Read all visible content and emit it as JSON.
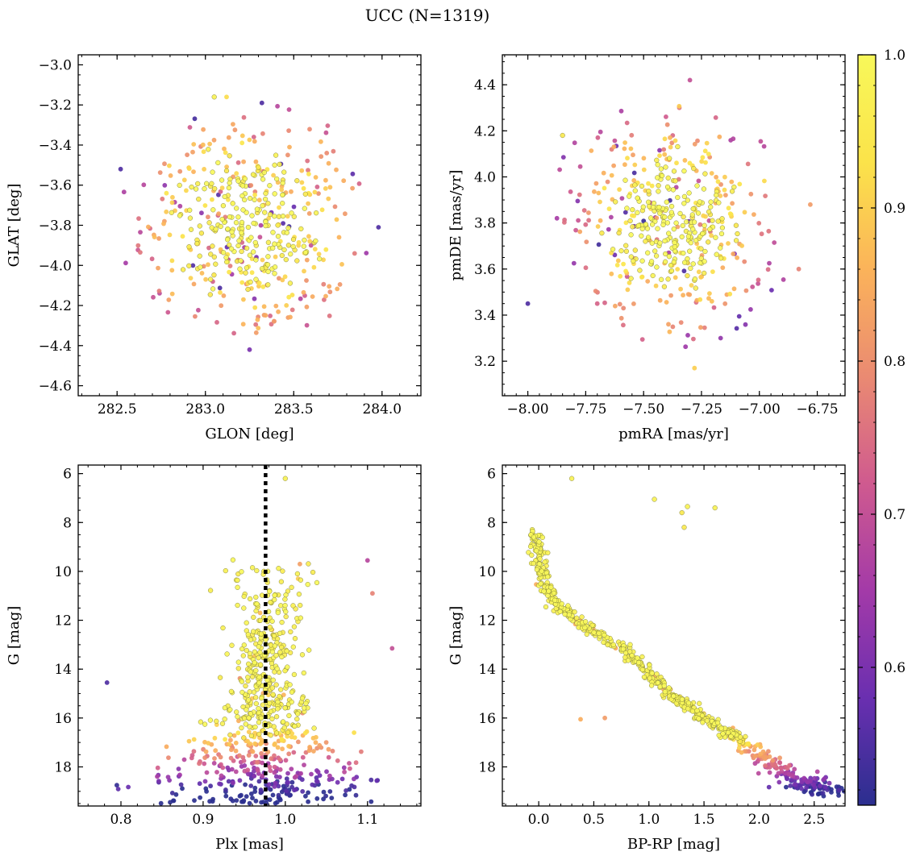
{
  "figure_title": "UCC (N=1319)",
  "colorbar": {
    "min": 0.51,
    "max": 1.0,
    "ticks": [
      0.6,
      0.7,
      0.8,
      0.9,
      1.0
    ],
    "tick_labels": [
      "0.6",
      "0.7",
      "0.8",
      "0.9",
      "1.0"
    ],
    "colormap_stops": [
      "#2b2f8f",
      "#6a2fb0",
      "#a33aa8",
      "#cf5a8f",
      "#ea8a72",
      "#fbb35a",
      "#fbe34a",
      "#f8f85a"
    ]
  },
  "chart_data": [
    {
      "type": "scatter",
      "id": "glon-glat",
      "xlabel": "GLON [deg]",
      "ylabel": "GLAT [deg]",
      "xlim": [
        282.28,
        284.22
      ],
      "ylim": [
        -4.65,
        -2.95
      ],
      "xticks": [
        282.5,
        283.0,
        283.5,
        284.0
      ],
      "xtick_labels": [
        "282.5",
        "283.0",
        "283.5",
        "284.0"
      ],
      "yticks": [
        -4.6,
        -4.4,
        -4.2,
        -4.0,
        -3.8,
        -3.6,
        -3.4,
        -3.2,
        -3.0
      ],
      "ytick_labels": [
        "−4.6",
        "−4.4",
        "−4.2",
        "−4.0",
        "−3.8",
        "−3.6",
        "−3.4",
        "−3.2",
        "−3.0"
      ],
      "cluster": {
        "cx": 283.25,
        "cy": -3.8,
        "sx": 0.25,
        "sy": 0.22,
        "radius_x": 0.75,
        "radius_y": 0.62
      },
      "n_points": 480,
      "sample_points": [
        [
          283.32,
          -3.19,
          0.55
        ],
        [
          283.05,
          -3.16,
          0.98
        ],
        [
          283.25,
          -4.42,
          0.6
        ],
        [
          282.52,
          -3.52,
          0.55
        ],
        [
          283.98,
          -3.81,
          0.55
        ],
        [
          283.12,
          -3.16,
          0.92
        ]
      ]
    },
    {
      "type": "scatter",
      "id": "pmra-pmde",
      "xlabel": "pmRA [mas/yr]",
      "ylabel": "pmDE [mas/yr]",
      "xlim": [
        -8.11,
        -6.63
      ],
      "ylim": [
        3.05,
        4.53
      ],
      "xticks": [
        -8.0,
        -7.75,
        -7.5,
        -7.25,
        -7.0,
        -6.75
      ],
      "xtick_labels": [
        "−8.00",
        "−7.75",
        "−7.50",
        "−7.25",
        "−7.00",
        "−6.75"
      ],
      "yticks": [
        3.2,
        3.4,
        3.6,
        3.8,
        4.0,
        4.2,
        4.4
      ],
      "ytick_labels": [
        "3.2",
        "3.4",
        "3.6",
        "3.8",
        "4.0",
        "4.2",
        "4.4"
      ],
      "cluster": {
        "cx": -7.38,
        "cy": 3.8,
        "sx": 0.17,
        "sy": 0.18,
        "radius_x": 0.55,
        "radius_y": 0.55
      },
      "n_points": 480,
      "sample_points": [
        [
          -7.3,
          4.42,
          0.7
        ],
        [
          -8.0,
          3.45,
          0.55
        ],
        [
          -7.28,
          3.17,
          0.9
        ],
        [
          -6.78,
          3.88,
          0.82
        ],
        [
          -6.83,
          3.6,
          0.78
        ],
        [
          -7.85,
          4.18,
          0.95
        ]
      ]
    },
    {
      "type": "scatter",
      "id": "plx-g",
      "xlabel": "Plx [mas]",
      "ylabel": "G [mag]",
      "xlim": [
        0.748,
        1.165
      ],
      "ylim": [
        19.6,
        5.65
      ],
      "xticks": [
        0.8,
        0.9,
        1.0,
        1.1
      ],
      "xtick_labels": [
        "0.8",
        "0.9",
        "1.0",
        "1.1"
      ],
      "yticks": [
        6,
        8,
        10,
        12,
        14,
        16,
        18
      ],
      "ytick_labels": [
        "6",
        "8",
        "10",
        "12",
        "14",
        "16",
        "18"
      ],
      "vline": {
        "x": 0.976,
        "style": "dotted"
      },
      "n_points": 700,
      "sample_points": [
        [
          1.0,
          6.2,
          0.98
        ],
        [
          0.783,
          14.55,
          0.55
        ],
        [
          1.13,
          13.15,
          0.7
        ],
        [
          0.795,
          18.75,
          0.52
        ],
        [
          1.1,
          9.55,
          0.68
        ],
        [
          1.106,
          10.9,
          0.78
        ]
      ]
    },
    {
      "type": "scatter",
      "id": "bprp-g",
      "xlabel": "BP-RP [mag]",
      "ylabel": "G [mag]",
      "xlim": [
        -0.33,
        2.78
      ],
      "ylim": [
        19.6,
        5.65
      ],
      "xticks": [
        0.0,
        0.5,
        1.0,
        1.5,
        2.0,
        2.5
      ],
      "xtick_labels": [
        "0.0",
        "0.5",
        "1.0",
        "1.5",
        "2.0",
        "2.5"
      ],
      "yticks": [
        6,
        8,
        10,
        12,
        14,
        16,
        18
      ],
      "ytick_labels": [
        "6",
        "8",
        "10",
        "12",
        "14",
        "16",
        "18"
      ],
      "sequence": [
        [
          -0.05,
          8.3
        ],
        [
          0.0,
          9.3
        ],
        [
          0.05,
          10.5
        ],
        [
          0.15,
          11.3
        ],
        [
          0.4,
          12.2
        ],
        [
          0.75,
          13.1
        ],
        [
          1.0,
          14.2
        ],
        [
          1.25,
          15.2
        ],
        [
          1.5,
          16.0
        ],
        [
          1.8,
          16.8
        ],
        [
          2.1,
          17.8
        ],
        [
          2.4,
          18.6
        ],
        [
          2.62,
          19.1
        ]
      ],
      "n_points": 700,
      "sample_points": [
        [
          0.3,
          6.2,
          0.98
        ],
        [
          1.05,
          7.05,
          0.98
        ],
        [
          1.3,
          7.6,
          0.95
        ],
        [
          1.35,
          7.35,
          0.98
        ],
        [
          1.32,
          8.2,
          0.95
        ],
        [
          1.6,
          7.4,
          0.98
        ],
        [
          0.38,
          16.05,
          0.85
        ],
        [
          0.6,
          16.0,
          0.82
        ]
      ]
    }
  ]
}
